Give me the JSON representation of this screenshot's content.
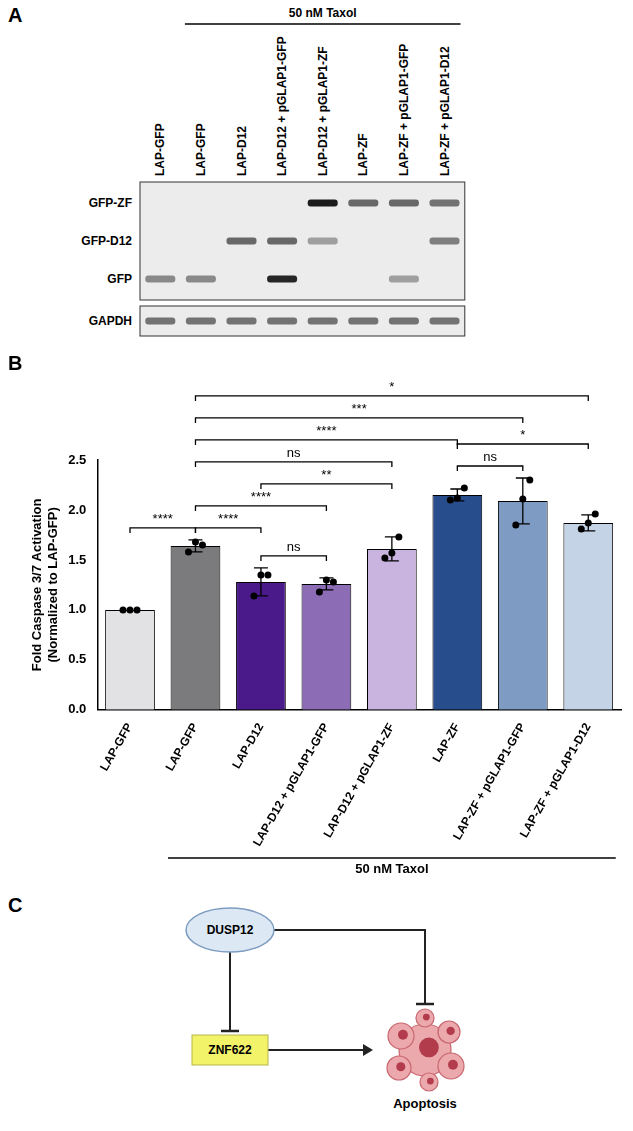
{
  "panel_a": {
    "letter": "A",
    "treatment": {
      "label": "50 nM Taxol",
      "lanes": [
        1,
        7
      ]
    },
    "lanes": [
      "LAP-GFP",
      "LAP-GFP",
      "LAP-D12",
      "LAP-D12 + pGLAP1-GFP",
      "LAP-D12 + pGLAP1-ZF",
      "LAP-ZF",
      "LAP-ZF + pGLAP1-GFP",
      "LAP-ZF + pGLAP1-D12"
    ],
    "blots": [
      {
        "bands": [
          {
            "label": "GFP-ZF",
            "intensity": [
              0,
              0,
              0,
              0,
              0.95,
              0.6,
              0.6,
              0.55
            ]
          },
          {
            "label": "GFP-D12",
            "intensity": [
              0,
              0,
              0.6,
              0.6,
              0.35,
              0,
              0,
              0.5
            ]
          },
          {
            "label": "GFP",
            "intensity": [
              0.45,
              0.45,
              0,
              0.9,
              0,
              0,
              0.35,
              0
            ]
          }
        ]
      },
      {
        "bands": [
          {
            "label": "GAPDH",
            "intensity": [
              0.55,
              0.55,
              0.55,
              0.55,
              0.55,
              0.55,
              0.55,
              0.55
            ]
          }
        ]
      }
    ]
  },
  "chart_data": {
    "letter": "B",
    "type": "bar",
    "categories": [
      "LAP-GFP",
      "LAP-GFP",
      "LAP-D12",
      "LAP-D12 + pGLAP1-GFP",
      "LAP-D12 + pGLAP1-ZF",
      "LAP-ZF",
      "LAP-ZF + pGLAP1-GFP",
      "LAP-ZF + pGLAP1-D12"
    ],
    "values": [
      1.0,
      1.64,
      1.28,
      1.26,
      1.61,
      2.15,
      2.09,
      1.87
    ],
    "error": [
      0,
      0.06,
      0.14,
      0.06,
      0.12,
      0.06,
      0.23,
      0.08
    ],
    "points": [
      [
        1.0,
        1.0,
        1.0
      ],
      [
        1.58,
        1.68,
        1.65
      ],
      [
        1.14,
        1.35,
        1.35
      ],
      [
        1.18,
        1.3,
        1.28
      ],
      [
        1.52,
        1.57,
        1.73
      ],
      [
        2.1,
        2.12,
        2.22
      ],
      [
        1.85,
        2.11,
        2.3
      ],
      [
        1.81,
        1.87,
        1.96
      ]
    ],
    "colors": [
      "#e2e2e4",
      "#7b7b7d",
      "#4a1a8a",
      "#8d6cb6",
      "#c8b4df",
      "#284d8c",
      "#7d9bc3",
      "#c5d3e6"
    ],
    "y_label": [
      "Fold Caspase 3/7 Activation",
      "(Normalized to LAP-GFP)"
    ],
    "ylim": [
      0,
      2.5
    ],
    "yticks": [
      {
        "value": 0,
        "label": "0.0"
      },
      0.5,
      {
        "value": 1,
        "label": "1.0"
      },
      1.5,
      {
        "value": 2,
        "label": "2.0"
      },
      2.5
    ],
    "treatment": {
      "label": "50 nM Taxol",
      "categories": [
        1,
        7
      ]
    },
    "significance": [
      {
        "from": 0,
        "to": 1,
        "label": "****"
      },
      {
        "from": 1,
        "to": 2,
        "label": "****"
      },
      {
        "from": 1,
        "to": 3,
        "label": "****"
      },
      {
        "from": 1,
        "to": 4,
        "label": "ns"
      },
      {
        "from": 1,
        "to": 5,
        "label": "****"
      },
      {
        "from": 1,
        "to": 6,
        "label": "***"
      },
      {
        "from": 1,
        "to": 7,
        "label": "*"
      },
      {
        "from": 2,
        "to": 3,
        "label": "ns"
      },
      {
        "from": 2,
        "to": 4,
        "label": "**"
      },
      {
        "from": 5,
        "to": 6,
        "label": "ns"
      },
      {
        "from": 5,
        "to": 7,
        "label": "*"
      }
    ],
    "marker": "circle",
    "grid": false
  },
  "panel_c": {
    "letter": "C",
    "nodes": [
      {
        "label": "DUSP12"
      },
      {
        "label": "ZNF622"
      },
      {
        "label": "Apoptosis"
      }
    ],
    "edges": [
      {
        "from": 0,
        "to": 2,
        "kind": "inhibits"
      },
      {
        "from": 0,
        "to": 1,
        "kind": "inhibits"
      },
      {
        "from": 1,
        "to": 2,
        "kind": "promotes"
      }
    ]
  }
}
